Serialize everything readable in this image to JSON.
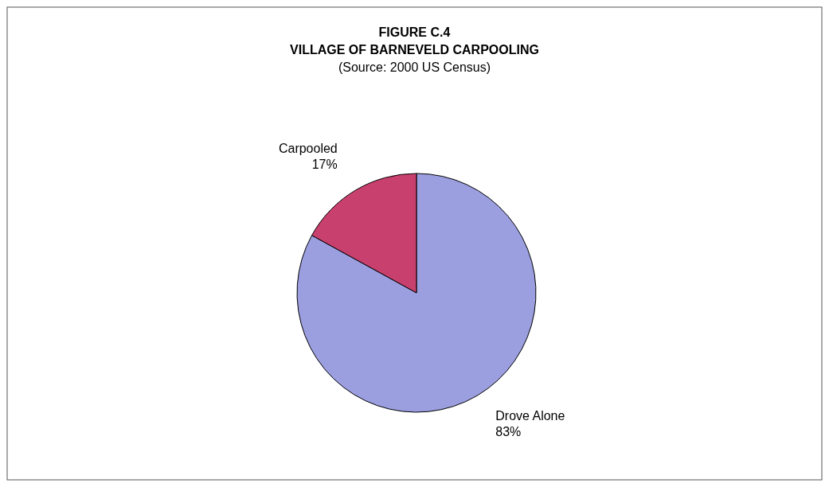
{
  "chart_data": {
    "type": "pie",
    "title": "FIGURE C.4\nVILLAGE OF BARNEVELD CARPOOLING",
    "subtitle": "(Source:  2000 US Census)",
    "categories": [
      "Drove Alone",
      "Carpooled"
    ],
    "values": [
      83,
      17
    ],
    "colors": [
      "#9b9fdf",
      "#c8406e"
    ],
    "value_labels": [
      "83%",
      "17%"
    ]
  }
}
